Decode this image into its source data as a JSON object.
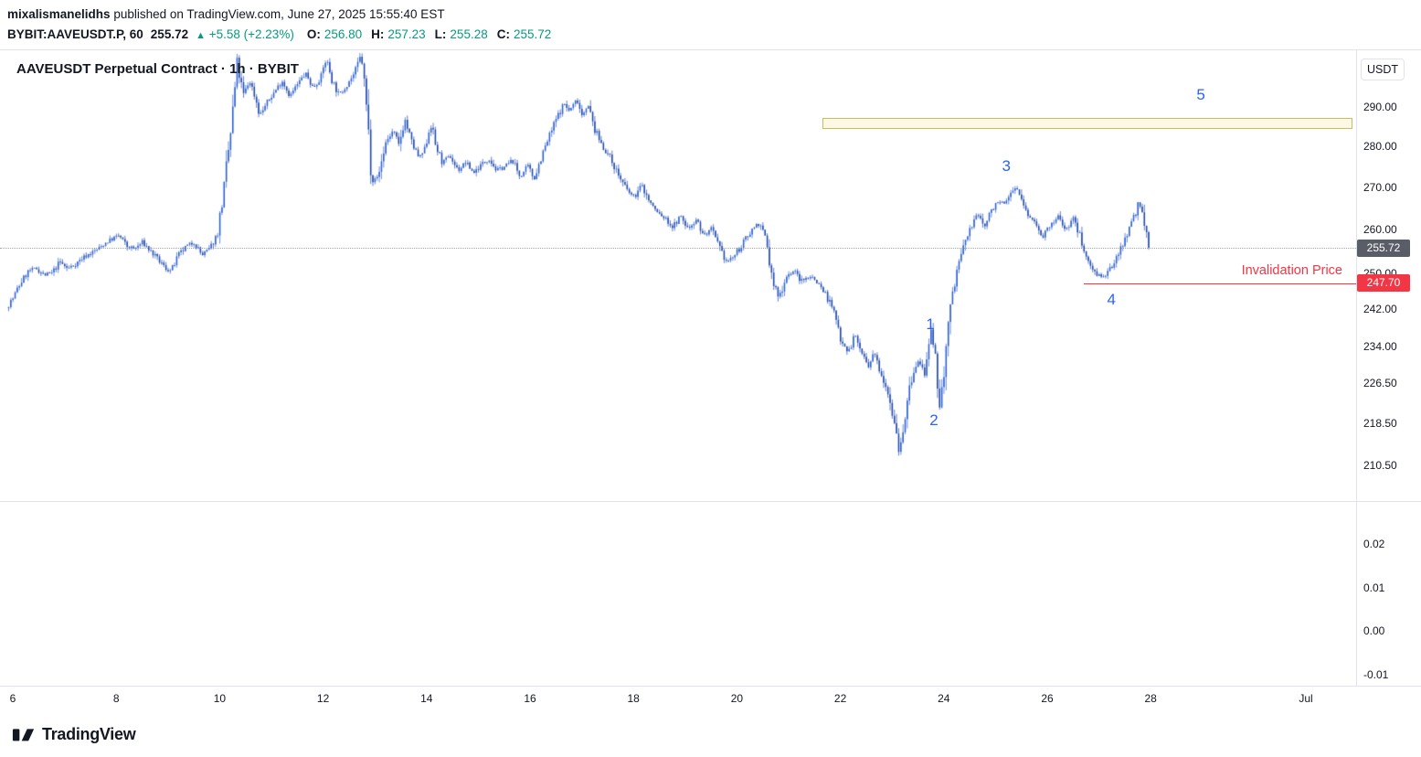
{
  "page": {
    "publisher": "mixalismanelidhs",
    "publish_info": " published on TradingView.com, June 27, 2025 15:55:40 EST"
  },
  "symbol_bar": {
    "symbol": "BYBIT:AAVEUSDT.P, 60",
    "last_price": "255.72",
    "change_arrow": "▲",
    "change": "+5.58 (+2.23%)",
    "ohlc": [
      {
        "label": "O:",
        "value": "256.80"
      },
      {
        "label": "H:",
        "value": "257.23"
      },
      {
        "label": "L:",
        "value": "255.28"
      },
      {
        "label": "C:",
        "value": "255.72"
      }
    ]
  },
  "chart": {
    "title": "AAVEUSDT Perpetual Contract · 1h · BYBIT",
    "currency_label": "USDT",
    "invalidation_label": "Invalidation Price",
    "current_price_badge": "255.72",
    "invalidation_badge": "247.70"
  },
  "watermark_logo": "TradingView",
  "chart_data": {
    "type": "candlestick",
    "title": "AAVEUSDT Perpetual Contract · 1h · BYBIT",
    "symbol": "BYBIT:AAVEUSDT.P",
    "interval": "60",
    "scale": "log",
    "y_ticks": [
      "290.00",
      "280.00",
      "270.00",
      "260.00",
      "250.00",
      "242.00",
      "234.00",
      "226.50",
      "218.50",
      "210.50"
    ],
    "y_tick_values": [
      290,
      280,
      270,
      260,
      250,
      242,
      234,
      226.5,
      218.5,
      210.5
    ],
    "x_ticks": [
      "6",
      "8",
      "10",
      "12",
      "14",
      "16",
      "18",
      "20",
      "22",
      "24",
      "26",
      "28",
      "Jul"
    ],
    "x_tick_days": [
      6,
      8,
      10,
      12,
      14,
      16,
      18,
      20,
      22,
      24,
      26,
      28,
      31
    ],
    "sub_pane_ticks": [
      "0.02",
      "0.01",
      "0.00",
      "-0.01"
    ],
    "sub_pane_values": [
      0.02,
      0.01,
      0,
      -0.01
    ],
    "current_price": 255.72,
    "invalidation_price": 247.7,
    "invalidation_line": {
      "price": 247.7,
      "day_from": 26.7
    },
    "target_zone": {
      "price_from": 284.4,
      "price_to": 287.2,
      "day_from": 21.65
    },
    "wave_labels": [
      {
        "label": "1",
        "day": 23.74,
        "price": 238.7
      },
      {
        "label": "2",
        "day": 23.81,
        "price": 219.0
      },
      {
        "label": "3",
        "day": 25.21,
        "price": 275.0
      },
      {
        "label": "4",
        "day": 27.24,
        "price": 244.1
      },
      {
        "label": "5",
        "day": 28.97,
        "price": 293.2
      }
    ],
    "colors": {
      "up": "#2a5ed4",
      "down": "#1d47ad",
      "accent_green": "#089981",
      "red": "#f23645",
      "wave_blue": "#2962ff",
      "zone_fill": "#fcf8e3",
      "zone_border": "#cbbd5c",
      "badge_gray": "#585d67"
    },
    "price_path": [
      [
        5.92,
        242.5
      ],
      [
        6.05,
        244.5
      ],
      [
        6.2,
        248
      ],
      [
        6.35,
        250.5
      ],
      [
        6.5,
        251
      ],
      [
        6.65,
        249.5
      ],
      [
        6.8,
        250
      ],
      [
        6.95,
        252.5
      ],
      [
        7.1,
        251
      ],
      [
        7.25,
        252
      ],
      [
        7.4,
        253.5
      ],
      [
        7.55,
        254.5
      ],
      [
        7.7,
        255.5
      ],
      [
        7.85,
        257
      ],
      [
        8.0,
        258
      ],
      [
        8.1,
        258.5
      ],
      [
        8.25,
        256
      ],
      [
        8.4,
        255.5
      ],
      [
        8.55,
        257
      ],
      [
        8.7,
        255
      ],
      [
        8.85,
        253
      ],
      [
        9.0,
        251
      ],
      [
        9.1,
        250.5
      ],
      [
        9.25,
        254
      ],
      [
        9.4,
        256
      ],
      [
        9.55,
        257
      ],
      [
        9.7,
        254
      ],
      [
        9.85,
        255.5
      ],
      [
        10.0,
        259
      ],
      [
        10.13,
        270
      ],
      [
        10.26,
        284
      ],
      [
        10.38,
        301
      ],
      [
        10.5,
        293
      ],
      [
        10.62,
        297
      ],
      [
        10.72,
        293
      ],
      [
        10.82,
        288
      ],
      [
        10.95,
        291
      ],
      [
        11.1,
        294
      ],
      [
        11.25,
        297
      ],
      [
        11.4,
        293
      ],
      [
        11.55,
        296
      ],
      [
        11.7,
        299
      ],
      [
        11.85,
        295
      ],
      [
        12.0,
        298
      ],
      [
        12.1,
        303
      ],
      [
        12.22,
        297
      ],
      [
        12.35,
        293
      ],
      [
        12.5,
        296
      ],
      [
        12.65,
        299
      ],
      [
        12.78,
        304
      ],
      [
        12.88,
        290
      ],
      [
        12.98,
        273
      ],
      [
        13.1,
        272
      ],
      [
        13.25,
        281
      ],
      [
        13.4,
        284
      ],
      [
        13.5,
        280
      ],
      [
        13.62,
        287
      ],
      [
        13.75,
        281
      ],
      [
        13.9,
        277
      ],
      [
        14.0,
        279
      ],
      [
        14.12,
        286
      ],
      [
        14.22,
        280
      ],
      [
        14.35,
        276
      ],
      [
        14.5,
        277.5
      ],
      [
        14.65,
        274
      ],
      [
        14.8,
        276
      ],
      [
        14.95,
        273.5
      ],
      [
        15.1,
        275.5
      ],
      [
        15.25,
        277
      ],
      [
        15.4,
        274
      ],
      [
        15.55,
        275
      ],
      [
        15.7,
        276.5
      ],
      [
        15.85,
        272.5
      ],
      [
        16.0,
        275
      ],
      [
        16.12,
        272
      ],
      [
        16.25,
        277
      ],
      [
        16.4,
        282
      ],
      [
        16.55,
        287
      ],
      [
        16.7,
        291
      ],
      [
        16.8,
        289
      ],
      [
        16.95,
        292
      ],
      [
        17.05,
        288
      ],
      [
        17.15,
        291
      ],
      [
        17.3,
        284
      ],
      [
        17.45,
        280
      ],
      [
        17.6,
        277
      ],
      [
        17.75,
        273
      ],
      [
        17.9,
        269.5
      ],
      [
        18.05,
        267.5
      ],
      [
        18.2,
        270.5
      ],
      [
        18.35,
        266.5
      ],
      [
        18.5,
        264
      ],
      [
        18.65,
        262.5
      ],
      [
        18.8,
        260.5
      ],
      [
        18.95,
        263
      ],
      [
        19.1,
        260
      ],
      [
        19.25,
        262.5
      ],
      [
        19.4,
        258.5
      ],
      [
        19.55,
        260
      ],
      [
        19.7,
        255.5
      ],
      [
        19.85,
        252.5
      ],
      [
        20.0,
        254
      ],
      [
        20.15,
        256.5
      ],
      [
        20.3,
        259.5
      ],
      [
        20.45,
        261.5
      ],
      [
        20.6,
        258
      ],
      [
        20.72,
        248.5
      ],
      [
        20.85,
        244.5
      ],
      [
        21.0,
        249.5
      ],
      [
        21.15,
        250.5
      ],
      [
        21.3,
        248
      ],
      [
        21.45,
        249.5
      ],
      [
        21.6,
        248
      ],
      [
        21.75,
        245.5
      ],
      [
        21.9,
        242
      ],
      [
        22.05,
        236
      ],
      [
        22.2,
        233
      ],
      [
        22.32,
        236.5
      ],
      [
        22.45,
        233
      ],
      [
        22.58,
        229.5
      ],
      [
        22.7,
        232.5
      ],
      [
        22.82,
        229
      ],
      [
        22.95,
        225.5
      ],
      [
        23.08,
        219.5
      ],
      [
        23.18,
        213.5
      ],
      [
        23.3,
        220
      ],
      [
        23.42,
        227.5
      ],
      [
        23.55,
        231
      ],
      [
        23.68,
        228.5
      ],
      [
        23.8,
        236.5
      ],
      [
        23.9,
        229.5
      ],
      [
        23.97,
        221.5
      ],
      [
        24.07,
        232
      ],
      [
        24.18,
        243
      ],
      [
        24.3,
        251
      ],
      [
        24.45,
        257
      ],
      [
        24.6,
        261.5
      ],
      [
        24.72,
        263.5
      ],
      [
        24.82,
        260.5
      ],
      [
        24.95,
        264
      ],
      [
        25.08,
        267
      ],
      [
        25.2,
        265.5
      ],
      [
        25.32,
        268
      ],
      [
        25.42,
        270.5
      ],
      [
        25.55,
        266.5
      ],
      [
        25.68,
        263
      ],
      [
        25.82,
        261.5
      ],
      [
        25.95,
        258.5
      ],
      [
        26.1,
        260.5
      ],
      [
        26.25,
        263
      ],
      [
        26.4,
        260
      ],
      [
        26.55,
        262.5
      ],
      [
        26.7,
        257.5
      ],
      [
        26.85,
        252
      ],
      [
        27.0,
        250
      ],
      [
        27.15,
        248.8
      ],
      [
        27.3,
        251.5
      ],
      [
        27.45,
        255.5
      ],
      [
        27.6,
        259.5
      ],
      [
        27.72,
        263
      ],
      [
        27.82,
        266.5
      ],
      [
        27.9,
        261.5
      ],
      [
        28.0,
        255.72
      ]
    ]
  }
}
